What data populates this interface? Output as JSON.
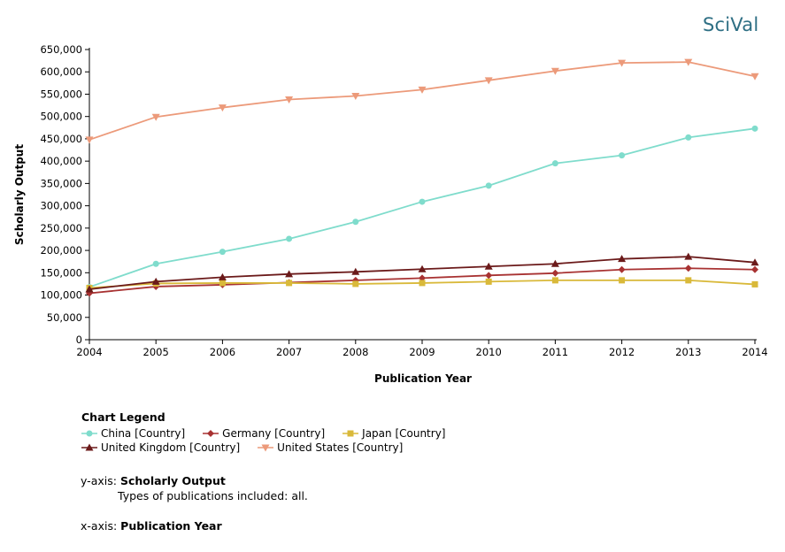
{
  "brand": "SciVal",
  "chart_data": {
    "type": "line",
    "x": [
      2004,
      2005,
      2006,
      2007,
      2008,
      2009,
      2010,
      2011,
      2012,
      2013,
      2014
    ],
    "xlabel": "Publication Year",
    "ylabel": "Scholarly Output",
    "ylim": [
      0,
      650000
    ],
    "yticks": [
      0,
      50000,
      100000,
      150000,
      200000,
      250000,
      300000,
      350000,
      400000,
      450000,
      500000,
      550000,
      600000,
      650000
    ],
    "ytick_labels": [
      "0",
      "50,000",
      "100,000",
      "150,000",
      "200,000",
      "250,000",
      "300,000",
      "350,000",
      "400,000",
      "450,000",
      "500,000",
      "550,000",
      "600,000",
      "650,000"
    ],
    "grid": false,
    "series": [
      {
        "name": "China [Country]",
        "color": "#7fdccc",
        "marker": "circle",
        "values": [
          118000,
          170000,
          197000,
          226000,
          264000,
          309000,
          345000,
          395000,
          413000,
          453000,
          473000
        ]
      },
      {
        "name": "Germany [Country]",
        "color": "#a83232",
        "marker": "diamond",
        "values": [
          104000,
          119000,
          123000,
          128000,
          133000,
          138000,
          144000,
          149000,
          157000,
          160000,
          157000
        ]
      },
      {
        "name": "Japan [Country]",
        "color": "#d9b93a",
        "marker": "square",
        "values": [
          116000,
          126000,
          127000,
          127000,
          125000,
          127000,
          130000,
          133000,
          133000,
          133000,
          124000
        ]
      },
      {
        "name": "United Kingdom [Country]",
        "color": "#6b1a1a",
        "marker": "triangle-up",
        "values": [
          113000,
          130000,
          140000,
          147000,
          152000,
          158000,
          164000,
          170000,
          181000,
          186000,
          173000
        ]
      },
      {
        "name": "United States [Country]",
        "color": "#ec9a7a",
        "marker": "triangle-down",
        "values": [
          448000,
          499000,
          520000,
          538000,
          546000,
          560000,
          581000,
          602000,
          620000,
          622000,
          590000
        ]
      }
    ]
  },
  "legend": {
    "title": "Chart Legend"
  },
  "axis_notes": {
    "y_prefix": "y-axis:",
    "y_name": "Scholarly Output",
    "y_detail": "Types of publications included: all.",
    "x_prefix": "x-axis:",
    "x_name": "Publication Year"
  }
}
